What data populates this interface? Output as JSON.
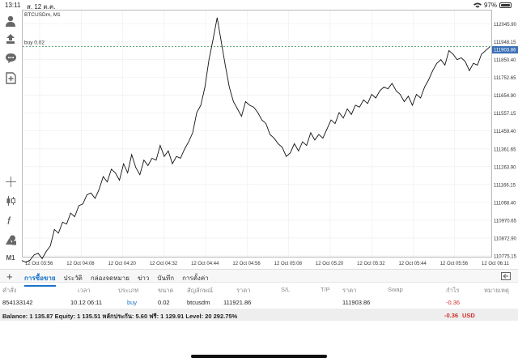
{
  "status_bar": {
    "time": "13:11",
    "date": "ส. 12 ต.ค.",
    "battery": "97%"
  },
  "chart": {
    "symbol_label": "BTCUSDm, M1",
    "order_line_label": "buy 0.02",
    "current_price_label": "111903.86",
    "price_ticks": [
      "112045.90",
      "111948.15",
      "111850.40",
      "111752.65",
      "111654.90",
      "111557.15",
      "111459.40",
      "111361.65",
      "111263.90",
      "111166.15",
      "111068.40",
      "110970.65",
      "110872.90",
      "110775.15"
    ],
    "time_ticks": [
      "12 Oct 03:56",
      "12 Oct 04:08",
      "12 Oct 04:20",
      "12 Oct 04:32",
      "12 Oct 04:44",
      "12 Oct 04:56",
      "12 Oct 05:08",
      "12 Oct 05:20",
      "12 Oct 05:32",
      "12 Oct 05:44",
      "12 Oct 05:56",
      "12 Oct 06:11"
    ],
    "series_prices": [
      110750,
      110740,
      110752,
      110780,
      110790,
      110760,
      110800,
      110830,
      110920,
      110900,
      110960,
      110950,
      111010,
      110990,
      111050,
      111060,
      111110,
      111120,
      111090,
      111140,
      111210,
      111180,
      111250,
      111230,
      111190,
      111280,
      111230,
      111330,
      111260,
      111220,
      111300,
      111270,
      111310,
      111300,
      111380,
      111320,
      111350,
      111280,
      111320,
      111310,
      111360,
      111400,
      111450,
      111560,
      111600,
      111700,
      111850,
      111960,
      112080,
      111950,
      111820,
      111700,
      111620,
      111580,
      111540,
      111620,
      111600,
      111590,
      111560,
      111520,
      111500,
      111440,
      111420,
      111390,
      111370,
      111320,
      111340,
      111390,
      111350,
      111400,
      111380,
      111450,
      111410,
      111440,
      111420,
      111470,
      111520,
      111500,
      111560,
      111530,
      111580,
      111550,
      111600,
      111590,
      111630,
      111610,
      111660,
      111640,
      111680,
      111700,
      111690,
      111720,
      111680,
      111660,
      111620,
      111650,
      111600,
      111660,
      111640,
      111700,
      111740,
      111790,
      111830,
      111850,
      111820,
      111900,
      111880,
      111850,
      111860,
      111840,
      111790,
      111830,
      111820,
      111880,
      111900,
      111920
    ]
  },
  "left_toolbar": {
    "icons": [
      "account-icon",
      "trade-icon",
      "chat-icon",
      "new-order-icon",
      "crosshair-icon",
      "candles-icon",
      "indicators-icon",
      "objects-icon"
    ],
    "timeframe": "M1"
  },
  "tabs": [
    "การซื้อขาย",
    "ประวัติ",
    "กล่องจดหมาย",
    "ข่าว",
    "บันทึก",
    "การตั้งค่า"
  ],
  "table": {
    "headers": [
      "คำสั่ง",
      "เวลา",
      "ประเภท",
      "ขนาด",
      "สัญลักษณ์",
      "ราคา",
      "S/L",
      "T/P",
      "ราคา",
      "Swap",
      "กำไร",
      "หมายเหตุ"
    ],
    "rows": [
      [
        "854133142",
        "10.12 06:11",
        "buy",
        "0.02",
        "btcusdm",
        "111921.86",
        "",
        "",
        "111903.86",
        "",
        "-0.36",
        ""
      ]
    ]
  },
  "balance": {
    "text": "Balance: 1 135.87 Equity: 1 135.51 หลักประกัน: 5.60 ฟรี: 1 129.91 Level: 20 292.75%",
    "profit": "-0.36",
    "currency": "USD"
  },
  "colors": {
    "accent": "#1a73c9",
    "loss": "#d0302a",
    "order_line": "#2e8b57",
    "price_tag": "#3a6fb5"
  }
}
